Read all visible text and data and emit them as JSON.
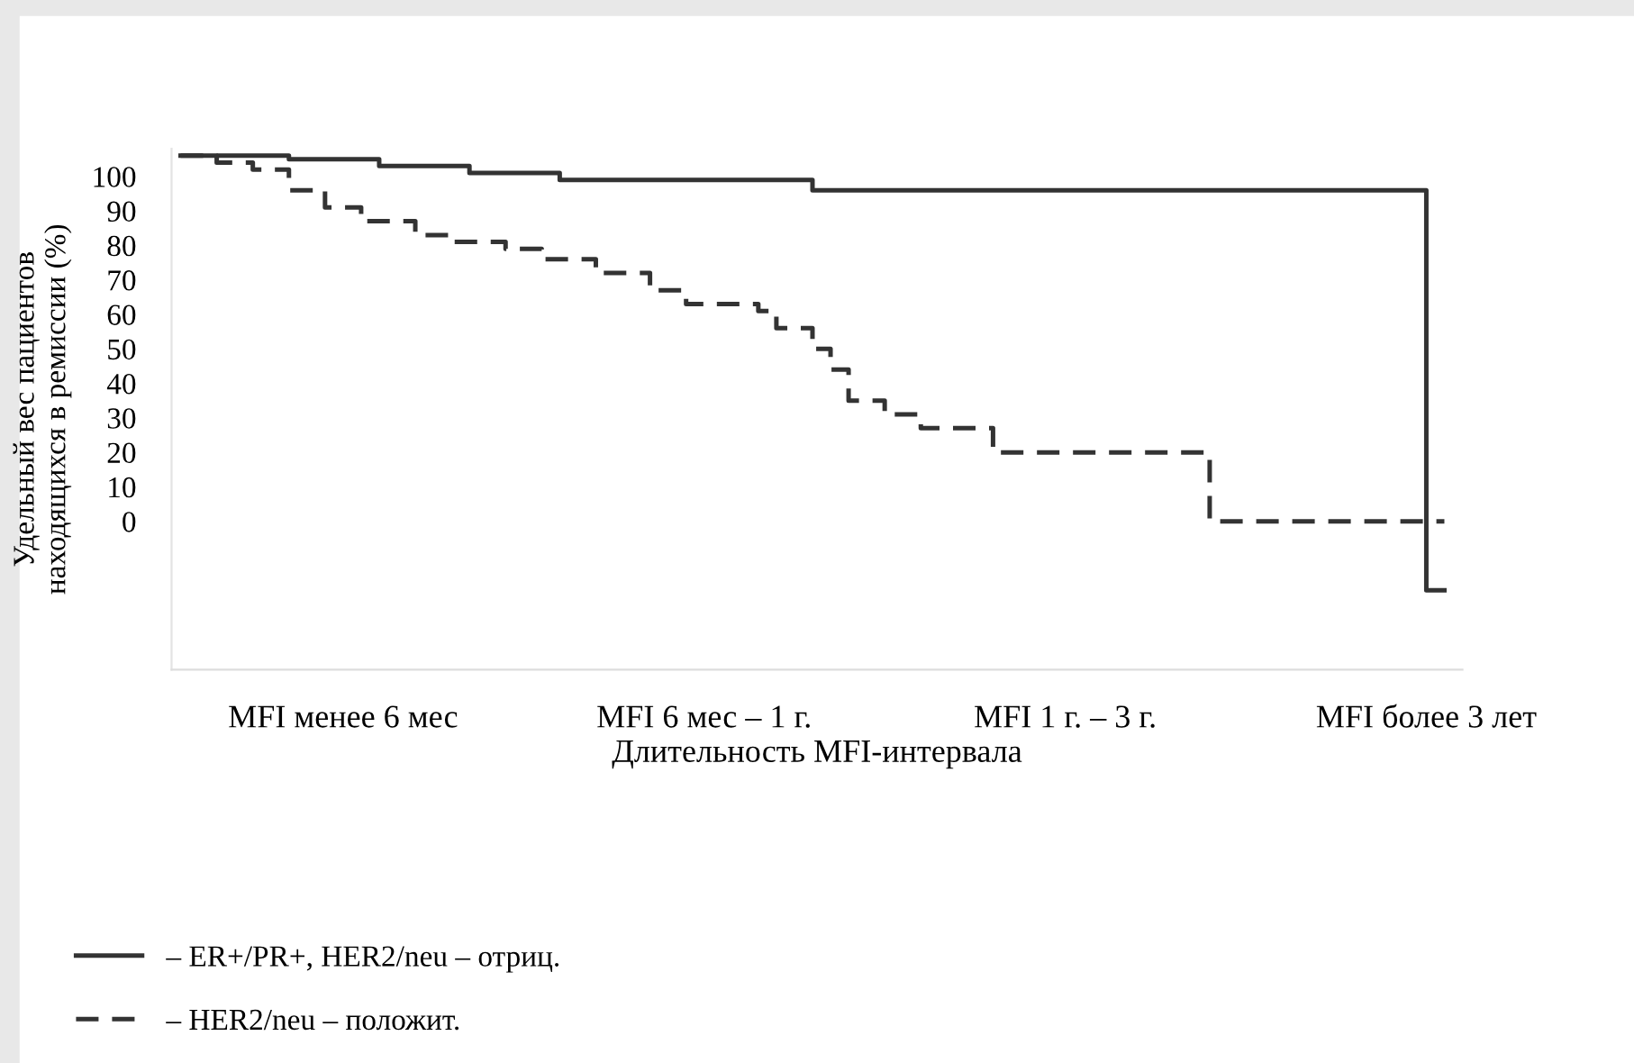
{
  "chart_data": {
    "type": "step",
    "xlabel": "Длительность MFI-интервала",
    "ylabel": "Удельный вес пациентов\nнаходящихся в ремиссии (%)",
    "ylim": [
      -43,
      108
    ],
    "categories": [
      null,
      null,
      null,
      null,
      null,
      null,
      null,
      null,
      null,
      "MFI менее 6 мес",
      null,
      null,
      null,
      null,
      null,
      null,
      null,
      null,
      null,
      null,
      null,
      null,
      null,
      null,
      null,
      null,
      null,
      null,
      null,
      "MFI 6 мес – 1 г.",
      null,
      null,
      null,
      null,
      null,
      null,
      null,
      null,
      null,
      null,
      null,
      null,
      null,
      null,
      null,
      null,
      null,
      null,
      null,
      "MFI 1 г. – 3 г.",
      null,
      null,
      null,
      null,
      null,
      null,
      null,
      null,
      null,
      null,
      null,
      null,
      null,
      null,
      null,
      null,
      null,
      null,
      null,
      "MFI более 3 лет",
      null
    ],
    "yticks": [
      0,
      10,
      20,
      30,
      40,
      50,
      60,
      70,
      80,
      90,
      100
    ],
    "grid": false,
    "legend": "bottom left",
    "series": [
      {
        "name": "– ER+/PR+, HER2/neu – отриц.",
        "color": "#333333",
        "line_style": "solid",
        "values": [
          106,
          106,
          106,
          106,
          106,
          106,
          105,
          105,
          105,
          105,
          105,
          103,
          103,
          103,
          103,
          103,
          101,
          101,
          101,
          101,
          101,
          99,
          99,
          99,
          99,
          99,
          99,
          99,
          99,
          99,
          99,
          99,
          99,
          99,
          99,
          96,
          96,
          96,
          96,
          96,
          96,
          96,
          96,
          96,
          96,
          96,
          96,
          96,
          96,
          96,
          96,
          96,
          96,
          96,
          96,
          96,
          96,
          96,
          96,
          96,
          96,
          96,
          96,
          96,
          96,
          96,
          96,
          96,
          96,
          -20,
          -20
        ]
      },
      {
        "name": "– HER2/neu – положит.",
        "color": "#333333",
        "line_style": "dashed",
        "values": [
          106,
          106,
          104,
          104,
          102,
          102,
          96,
          96,
          91,
          91,
          87,
          87,
          87,
          83,
          83,
          81,
          81,
          81,
          79,
          79,
          76,
          76,
          76,
          72,
          72,
          72,
          67,
          67,
          63,
          63,
          63,
          63,
          61,
          56,
          56,
          50,
          44,
          35,
          35,
          31,
          31,
          27,
          27,
          27,
          27,
          20,
          20,
          20,
          20,
          20,
          20,
          20,
          20,
          20,
          20,
          20,
          20,
          0,
          0,
          0,
          0,
          0,
          0,
          0,
          0,
          0,
          0,
          0,
          0,
          0,
          0
        ]
      }
    ]
  }
}
